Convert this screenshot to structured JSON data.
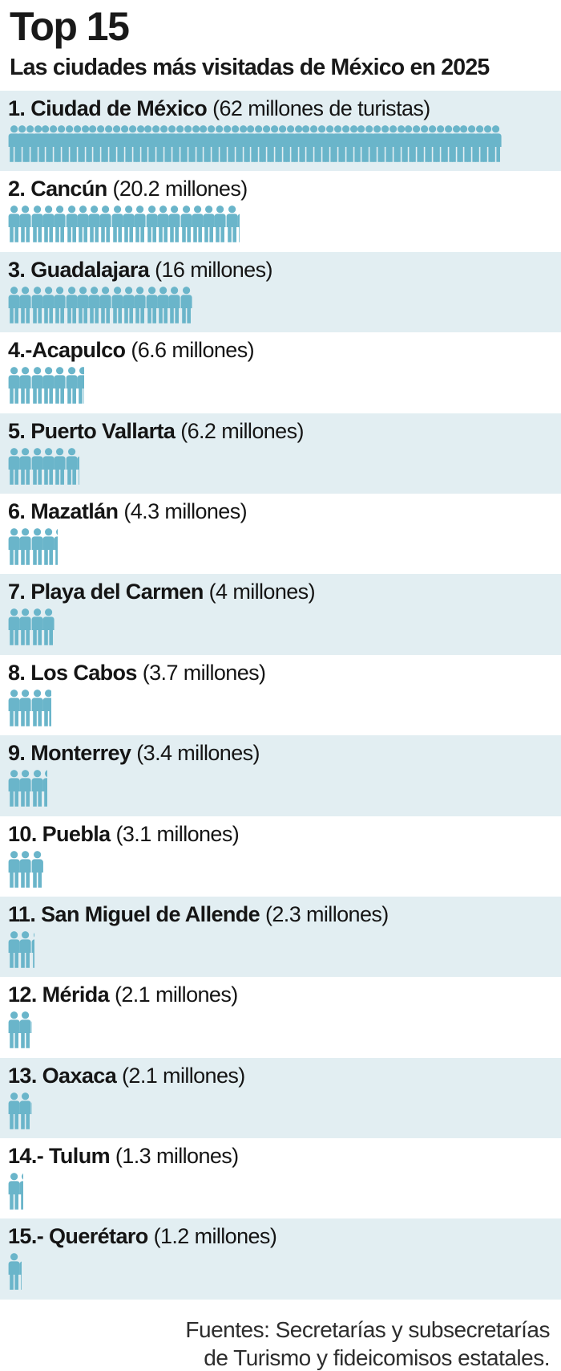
{
  "header": {
    "title": "Top 15",
    "subtitle": "Las ciudades más visitadas de México en 2025"
  },
  "footer": {
    "line1": "Fuentes: Secretarías y subsecretarías",
    "line2": "de Turismo y fideicomisos estatales."
  },
  "colors": {
    "icon_teal": "#6ab5ca",
    "band_blue": "#e2eef2",
    "text_dark": "#191919",
    "background": "#ffffff"
  },
  "chart_data": {
    "type": "pictogram-bar",
    "title": "Top 15",
    "subtitle": "Las ciudades más visitadas de México en 2025",
    "unit": "millones de turistas",
    "icon_unit_millions": 1,
    "legend_position": "none",
    "cities": [
      {
        "rank": 1,
        "label": "1. Ciudad de México",
        "city": "Ciudad de México",
        "millions": 62,
        "value_label": "(62 millones de turistas)"
      },
      {
        "rank": 2,
        "label": "2. Cancún",
        "city": "Cancún",
        "millions": 20.2,
        "value_label": "(20.2 millones)"
      },
      {
        "rank": 3,
        "label": "3. Guadalajara",
        "city": "Guadalajara",
        "millions": 16,
        "value_label": "(16 millones)"
      },
      {
        "rank": 4,
        "label": "4.-Acapulco",
        "city": "Acapulco",
        "millions": 6.6,
        "value_label": "(6.6 millones)"
      },
      {
        "rank": 5,
        "label": "5. Puerto Vallarta",
        "city": "Puerto Vallarta",
        "millions": 6.2,
        "value_label": "(6.2 millones)"
      },
      {
        "rank": 6,
        "label": "6. Mazatlán",
        "city": "Mazatlán",
        "millions": 4.3,
        "value_label": "(4.3 millones)"
      },
      {
        "rank": 7,
        "label": "7. Playa del Carmen",
        "city": "Playa del Carmen",
        "millions": 4,
        "value_label": "(4 millones)"
      },
      {
        "rank": 8,
        "label": "8. Los Cabos",
        "city": "Los Cabos",
        "millions": 3.7,
        "value_label": "(3.7 millones)"
      },
      {
        "rank": 9,
        "label": "9. Monterrey",
        "city": "Monterrey",
        "millions": 3.4,
        "value_label": "(3.4 millones)"
      },
      {
        "rank": 10,
        "label": "10. Puebla",
        "city": "Puebla",
        "millions": 3.1,
        "value_label": "(3.1 millones)"
      },
      {
        "rank": 11,
        "label": "11. San Miguel de Allende",
        "city": "San Miguel de Allende",
        "millions": 2.3,
        "value_label": "(2.3 millones)"
      },
      {
        "rank": 12,
        "label": "12. Mérida",
        "city": "Mérida",
        "millions": 2.1,
        "value_label": "(2.1 millones)"
      },
      {
        "rank": 13,
        "label": "13. Oaxaca",
        "city": "Oaxaca",
        "millions": 2.1,
        "value_label": "(2.1 millones)"
      },
      {
        "rank": 14,
        "label": "14.- Tulum",
        "city": "Tulum",
        "millions": 1.3,
        "value_label": "(1.3 millones)"
      },
      {
        "rank": 15,
        "label": "15.- Querétaro",
        "city": "Querétaro",
        "millions": 1.2,
        "value_label": "(1.2 millones)"
      }
    ]
  }
}
